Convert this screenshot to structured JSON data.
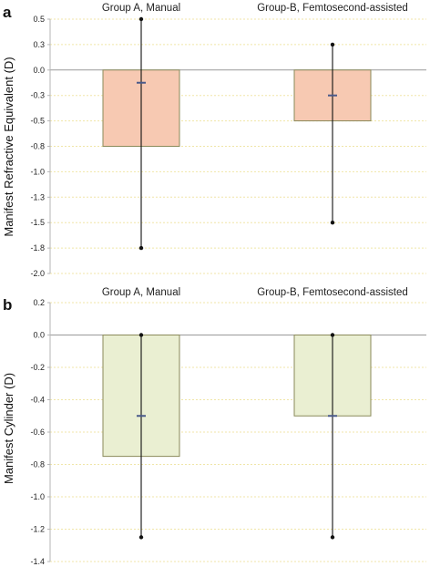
{
  "chart_data": [
    {
      "panel": "a",
      "type": "bar",
      "ylabel": "Manifest Refractive Equivalent (D)",
      "categories": [
        "Group A, Manual",
        "Group-B, Femtosecond-assisted"
      ],
      "yticks": [
        "0.5",
        "0.3",
        "0.0",
        "-0.3",
        "-0.5",
        "-0.8",
        "-1.0",
        "-1.3",
        "-1.5",
        "-1.8",
        "-2.0"
      ],
      "ylim": [
        -2.0,
        0.5
      ],
      "grid": true,
      "bar_color": "#f7c9b2",
      "bar_edge": "#8a8a5a",
      "bars": [
        {
          "category": "Group A, Manual",
          "value": -0.75,
          "center": -0.125,
          "min": -1.75,
          "max": 0.5
        },
        {
          "category": "Group-B, Femtosecond-assisted",
          "value": -0.5,
          "center": -0.25,
          "min": -1.5,
          "max": 0.25
        }
      ]
    },
    {
      "panel": "b",
      "type": "bar",
      "ylabel": "Manifest Cylinder (D)",
      "categories": [
        "Group A, Manual",
        "Group-B, Femtosecond-assisted"
      ],
      "yticks": [
        "0.2",
        "0.0",
        "-0.2",
        "-0.4",
        "-0.6",
        "-0.8",
        "-1.0",
        "-1.2",
        "-1.4"
      ],
      "ylim": [
        -1.4,
        0.2
      ],
      "grid": true,
      "bar_color": "#eaefd2",
      "bar_edge": "#8a8a5a",
      "bars": [
        {
          "category": "Group A, Manual",
          "value": -0.75,
          "center": -0.5,
          "min": -1.25,
          "max": 0.0
        },
        {
          "category": "Group-B, Femtosecond-assisted",
          "value": -0.5,
          "center": -0.5,
          "min": -1.25,
          "max": 0.0
        }
      ]
    }
  ],
  "colors": {
    "grid": "#f0e6a8",
    "zero_line": "#9a9a9a",
    "axis": "#b5b5b5",
    "whisker": "#111111",
    "center_marker": "#4a5a8a"
  }
}
